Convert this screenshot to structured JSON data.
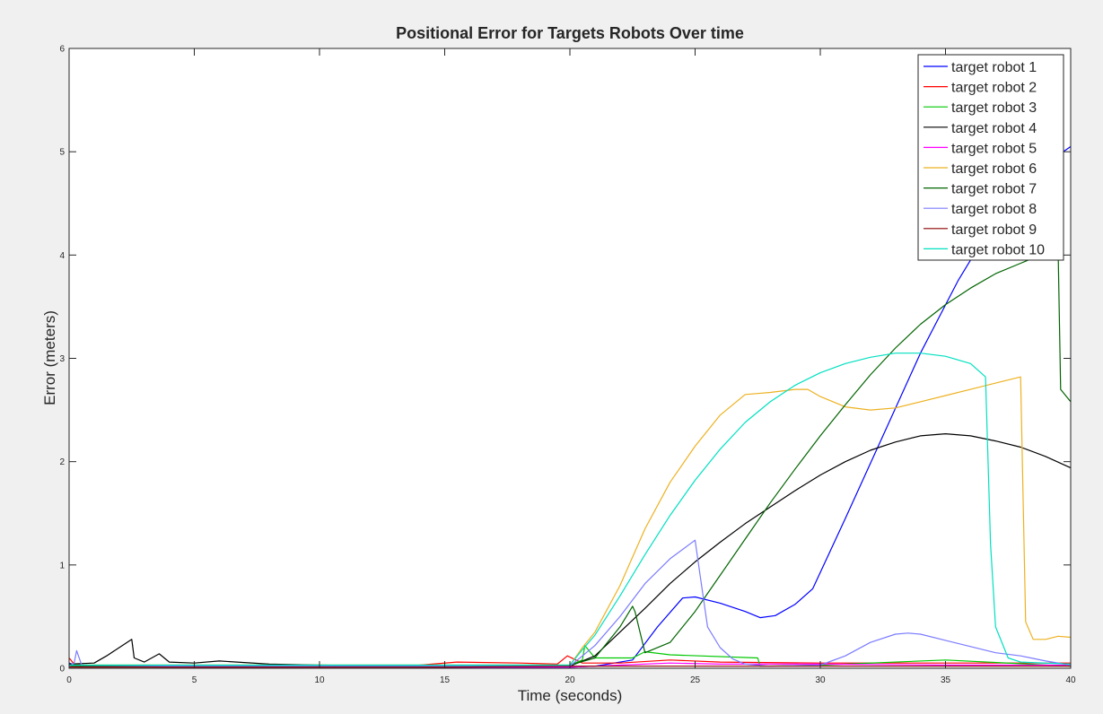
{
  "chart_data": {
    "type": "line",
    "title": "Positional Error for Targets Robots Over time",
    "xlabel": "Time (seconds)",
    "ylabel": "Error (meters)",
    "xlim": [
      0,
      40
    ],
    "ylim": [
      0,
      6
    ],
    "xticks": [
      0,
      5,
      10,
      15,
      20,
      25,
      30,
      35,
      40
    ],
    "yticks": [
      0,
      1,
      2,
      3,
      4,
      5,
      6
    ],
    "grid": false,
    "legend_position": "top-right",
    "series": [
      {
        "name": "target robot 1",
        "color": "#0000ff",
        "x": [
          0,
          0.3,
          0.6,
          5,
          10,
          15,
          20,
          21,
          22.5,
          23.5,
          24.5,
          25,
          26,
          27,
          27.6,
          28.2,
          29,
          29.7,
          31,
          32.5,
          34,
          35.5,
          36.5,
          38,
          39,
          39.7,
          40
        ],
        "y": [
          0.05,
          0.02,
          0.02,
          0.02,
          0.02,
          0.01,
          0.01,
          0.02,
          0.08,
          0.4,
          0.68,
          0.69,
          0.63,
          0.55,
          0.49,
          0.51,
          0.62,
          0.77,
          1.45,
          2.25,
          3.05,
          3.75,
          4.15,
          4.55,
          4.8,
          5.0,
          5.05
        ]
      },
      {
        "name": "target robot 2",
        "color": "#ff0000",
        "x": [
          0,
          0.2,
          0.5,
          5,
          10,
          14,
          15.5,
          18,
          19.5,
          19.9,
          20.5,
          22,
          24,
          26,
          30,
          35,
          40
        ],
        "y": [
          0.1,
          0.04,
          0.03,
          0.02,
          0.02,
          0.03,
          0.06,
          0.05,
          0.04,
          0.12,
          0.05,
          0.05,
          0.08,
          0.06,
          0.05,
          0.05,
          0.05
        ]
      },
      {
        "name": "target robot 3",
        "color": "#00c800",
        "x": [
          0,
          0.3,
          5,
          10,
          15,
          20,
          20.5,
          20.6,
          21,
          22.5,
          23,
          24,
          27.5,
          27.6,
          30,
          35,
          40
        ],
        "y": [
          0.04,
          0.03,
          0.03,
          0.03,
          0.03,
          0.03,
          0.08,
          0.22,
          0.1,
          0.1,
          0.16,
          0.13,
          0.1,
          0.02,
          0.03,
          0.08,
          0.02
        ]
      },
      {
        "name": "target robot 4",
        "color": "#000000",
        "x": [
          0,
          1,
          1.5,
          2,
          2.5,
          2.6,
          3,
          3.6,
          4,
          5,
          6,
          8,
          10,
          15,
          20,
          21,
          22,
          23,
          24,
          25,
          26,
          27,
          28,
          29,
          30,
          31,
          32,
          33,
          34,
          35,
          36,
          37,
          38,
          39,
          40
        ],
        "y": [
          0.04,
          0.05,
          0.12,
          0.2,
          0.28,
          0.1,
          0.06,
          0.14,
          0.06,
          0.05,
          0.07,
          0.04,
          0.03,
          0.02,
          0.02,
          0.12,
          0.35,
          0.58,
          0.82,
          1.03,
          1.22,
          1.4,
          1.56,
          1.72,
          1.87,
          2.0,
          2.11,
          2.19,
          2.25,
          2.27,
          2.25,
          2.2,
          2.14,
          2.05,
          1.94
        ]
      },
      {
        "name": "target robot 5",
        "color": "#ff00ff",
        "x": [
          0,
          5,
          10,
          15,
          20,
          22,
          24,
          26,
          30,
          35,
          40
        ],
        "y": [
          0.02,
          0.01,
          0.01,
          0.01,
          0.01,
          0.03,
          0.05,
          0.04,
          0.04,
          0.03,
          0.03
        ]
      },
      {
        "name": "target robot 6",
        "color": "#edb120",
        "x": [
          0,
          5,
          10,
          15,
          20,
          20.5,
          21,
          22,
          23,
          24,
          25,
          26,
          27,
          27.5,
          28,
          29,
          29.5,
          30,
          31,
          32,
          33,
          34,
          35,
          36,
          37,
          38,
          38.2,
          38.5,
          39,
          39.5,
          40
        ],
        "y": [
          0.03,
          0.03,
          0.03,
          0.03,
          0.03,
          0.2,
          0.35,
          0.8,
          1.35,
          1.8,
          2.15,
          2.45,
          2.65,
          2.66,
          2.67,
          2.7,
          2.7,
          2.63,
          2.53,
          2.5,
          2.52,
          2.58,
          2.64,
          2.7,
          2.76,
          2.82,
          0.45,
          0.28,
          0.28,
          0.31,
          0.3
        ]
      },
      {
        "name": "target robot 7",
        "color": "#006400",
        "x": [
          0,
          5,
          10,
          15,
          20,
          21,
          22,
          22.5,
          22.6,
          23,
          24,
          25,
          26,
          27,
          28,
          29,
          30,
          31,
          32,
          33,
          34,
          35,
          36,
          37,
          38,
          39,
          39.5,
          39.6,
          40
        ],
        "y": [
          0.02,
          0.02,
          0.02,
          0.02,
          0.03,
          0.1,
          0.4,
          0.6,
          0.55,
          0.15,
          0.25,
          0.55,
          0.9,
          1.25,
          1.6,
          1.93,
          2.25,
          2.55,
          2.84,
          3.1,
          3.33,
          3.52,
          3.68,
          3.82,
          3.92,
          4.02,
          4.05,
          2.7,
          2.58
        ]
      },
      {
        "name": "target robot 8",
        "color": "#7b7bff",
        "x": [
          0,
          0.2,
          0.3,
          0.5,
          5,
          10,
          15,
          20,
          21,
          22,
          23,
          24,
          25,
          25.2,
          25.5,
          26,
          26.5,
          27,
          28,
          30,
          31,
          32,
          33,
          33.5,
          34,
          35,
          36,
          37,
          38,
          39,
          40
        ],
        "y": [
          0.02,
          0.05,
          0.17,
          0.03,
          0.02,
          0.02,
          0.02,
          0.02,
          0.22,
          0.5,
          0.82,
          1.06,
          1.24,
          0.9,
          0.4,
          0.2,
          0.09,
          0.04,
          0.02,
          0.03,
          0.12,
          0.25,
          0.33,
          0.34,
          0.33,
          0.27,
          0.21,
          0.15,
          0.12,
          0.07,
          0.03
        ]
      },
      {
        "name": "target robot 9",
        "color": "#8b0000",
        "x": [
          0,
          5,
          10,
          15,
          20,
          25,
          30,
          35,
          40
        ],
        "y": [
          0.01,
          0.01,
          0.01,
          0.01,
          0.02,
          0.02,
          0.02,
          0.02,
          0.02
        ]
      },
      {
        "name": "target robot 10",
        "color": "#00e0c0",
        "x": [
          0,
          5,
          10,
          15,
          20,
          20.5,
          21,
          22,
          23,
          24,
          25,
          26,
          27,
          28,
          29,
          30,
          31,
          32,
          33,
          34,
          35,
          36,
          36.6,
          36.8,
          37,
          37.5,
          38,
          40
        ],
        "y": [
          0.03,
          0.03,
          0.03,
          0.03,
          0.03,
          0.18,
          0.32,
          0.7,
          1.1,
          1.48,
          1.82,
          2.12,
          2.38,
          2.58,
          2.74,
          2.86,
          2.95,
          3.01,
          3.05,
          3.05,
          3.02,
          2.95,
          2.82,
          1.2,
          0.4,
          0.1,
          0.06,
          0.04
        ]
      }
    ]
  }
}
